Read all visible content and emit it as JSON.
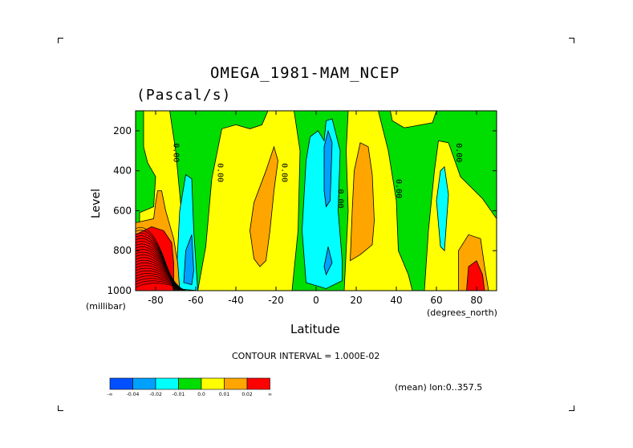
{
  "chart_data": {
    "type": "heatmap",
    "title": "OMEGA_1981-MAM_NCEP",
    "subtitle": "(Pascal/s)",
    "xlabel": "Latitude",
    "ylabel": "Level",
    "x_unit": "(degrees_north)",
    "y_unit": "(millibar)",
    "xlim": [
      -90,
      90
    ],
    "ylim": [
      1000,
      100
    ],
    "x_ticks": [
      -80,
      -60,
      -40,
      -20,
      0,
      20,
      40,
      60,
      80
    ],
    "y_ticks": [
      200,
      400,
      600,
      800,
      1000
    ],
    "contour_interval_text": "CONTOUR INTERVAL = 1.000E-02",
    "mean_text": "(mean) lon:0..357.5",
    "contour_labels": [
      {
        "text": "0.00",
        "x": -71,
        "y": 310
      },
      {
        "text": "0.00",
        "x": -49,
        "y": 410
      },
      {
        "text": "0.00",
        "x": -17,
        "y": 410
      },
      {
        "text": "0.00",
        "x": 11,
        "y": 540
      },
      {
        "text": "0.00",
        "x": 40,
        "y": 490
      },
      {
        "text": "0.00",
        "x": 70,
        "y": 310
      }
    ],
    "legend": {
      "colors": [
        "#0050ff",
        "#00a0ff",
        "#00ffff",
        "#00dd00",
        "#ffff00",
        "#ffa500",
        "#ff0000"
      ],
      "labels": [
        "-∞",
        "-0.04",
        "-0.02",
        "-0.01",
        "0.0",
        "0.01",
        "0.02",
        "∞"
      ]
    },
    "regions": [
      {
        "color": "#00dd00",
        "points": [
          [
            -90,
            100
          ],
          [
            90,
            100
          ],
          [
            90,
            1000
          ],
          [
            -90,
            1000
          ]
        ]
      },
      {
        "color": "#ffff00",
        "points": [
          [
            -88,
            610
          ],
          [
            -81,
            580
          ],
          [
            -80,
            430
          ],
          [
            -84,
            360
          ],
          [
            -86,
            280
          ],
          [
            -86,
            100
          ],
          [
            -73,
            100
          ],
          [
            -70,
            300
          ],
          [
            -67,
            620
          ],
          [
            -65,
            800
          ],
          [
            -66,
            1000
          ],
          [
            -88,
            1000
          ]
        ]
      },
      {
        "color": "#ffff00",
        "points": [
          [
            -59,
            1000
          ],
          [
            -55,
            780
          ],
          [
            -52,
            440
          ],
          [
            -47,
            190
          ],
          [
            -40,
            170
          ],
          [
            -33,
            190
          ],
          [
            -27,
            170
          ],
          [
            -24,
            100
          ],
          [
            -11,
            100
          ],
          [
            -8,
            300
          ],
          [
            -9,
            700
          ],
          [
            -11,
            900
          ],
          [
            -12,
            1000
          ]
        ]
      },
      {
        "color": "#ffff00",
        "points": [
          [
            14,
            1000
          ],
          [
            16,
            600
          ],
          [
            15,
            300
          ],
          [
            16,
            100
          ],
          [
            31,
            100
          ],
          [
            36,
            300
          ],
          [
            40,
            550
          ],
          [
            41,
            800
          ],
          [
            46,
            920
          ],
          [
            48,
            1000
          ]
        ]
      },
      {
        "color": "#ffff00",
        "points": [
          [
            54,
            1000
          ],
          [
            56,
            700
          ],
          [
            59,
            400
          ],
          [
            61,
            250
          ],
          [
            66,
            260
          ],
          [
            72,
            430
          ],
          [
            83,
            540
          ],
          [
            90,
            640
          ],
          [
            90,
            1000
          ]
        ]
      },
      {
        "color": "#ffff00",
        "points": [
          [
            37,
            100
          ],
          [
            60,
            100
          ],
          [
            58,
            160
          ],
          [
            44,
            185
          ],
          [
            38,
            150
          ]
        ]
      },
      {
        "color": "#00ffff",
        "points": [
          [
            -70,
            990
          ],
          [
            -68,
            600
          ],
          [
            -65,
            420
          ],
          [
            -62,
            440
          ],
          [
            -61,
            700
          ],
          [
            -59,
            1000
          ]
        ]
      },
      {
        "color": "#00ffff",
        "points": [
          [
            -5,
            960
          ],
          [
            -7,
            700
          ],
          [
            -5,
            350
          ],
          [
            -3,
            230
          ],
          [
            1,
            200
          ],
          [
            4,
            250
          ],
          [
            5,
            150
          ],
          [
            8,
            140
          ],
          [
            12,
            300
          ],
          [
            11,
            600
          ],
          [
            13,
            850
          ],
          [
            13,
            950
          ],
          [
            5,
            990
          ]
        ]
      },
      {
        "color": "#00ffff",
        "points": [
          [
            62,
            780
          ],
          [
            60,
            550
          ],
          [
            62,
            400
          ],
          [
            64,
            380
          ],
          [
            66,
            520
          ],
          [
            64,
            800
          ]
        ]
      },
      {
        "color": "#00a0ff",
        "points": [
          [
            -66,
            960
          ],
          [
            -65,
            800
          ],
          [
            -62,
            720
          ],
          [
            -61,
            900
          ],
          [
            -62,
            970
          ]
        ]
      },
      {
        "color": "#00a0ff",
        "points": [
          [
            4,
            280
          ],
          [
            6,
            200
          ],
          [
            8,
            260
          ],
          [
            7,
            550
          ],
          [
            5,
            580
          ],
          [
            4,
            500
          ]
        ]
      },
      {
        "color": "#00a0ff",
        "points": [
          [
            4,
            880
          ],
          [
            6,
            780
          ],
          [
            8,
            860
          ],
          [
            5,
            920
          ]
        ]
      },
      {
        "color": "#ffa500",
        "points": [
          [
            -31,
            840
          ],
          [
            -33,
            700
          ],
          [
            -31,
            560
          ],
          [
            -25,
            400
          ],
          [
            -21,
            280
          ],
          [
            -19,
            350
          ],
          [
            -21,
            500
          ],
          [
            -23,
            700
          ],
          [
            -25,
            850
          ],
          [
            -28,
            880
          ]
        ]
      },
      {
        "color": "#ffa500",
        "points": [
          [
            17,
            850
          ],
          [
            18,
            600
          ],
          [
            19,
            400
          ],
          [
            22,
            260
          ],
          [
            26,
            280
          ],
          [
            28,
            420
          ],
          [
            29,
            650
          ],
          [
            28,
            770
          ],
          [
            22,
            820
          ]
        ]
      },
      {
        "color": "#ffa500",
        "points": [
          [
            -90,
            660
          ],
          [
            -81,
            640
          ],
          [
            -80,
            560
          ],
          [
            -79,
            500
          ],
          [
            -77,
            500
          ],
          [
            -75,
            600
          ],
          [
            -71,
            740
          ],
          [
            -69,
            860
          ],
          [
            -68,
            1000
          ],
          [
            -90,
            1000
          ]
        ]
      },
      {
        "color": "#ffa500",
        "points": [
          [
            71,
            1000
          ],
          [
            71,
            800
          ],
          [
            76,
            720
          ],
          [
            82,
            740
          ],
          [
            84,
            880
          ],
          [
            86,
            1000
          ]
        ]
      },
      {
        "color": "#ff0000",
        "points": [
          [
            -90,
            720
          ],
          [
            -82,
            680
          ],
          [
            -76,
            700
          ],
          [
            -72,
            760
          ],
          [
            -71,
            860
          ],
          [
            -71,
            1000
          ],
          [
            -90,
            1000
          ]
        ]
      },
      {
        "color": "#ff0000",
        "points": [
          [
            75,
            1000
          ],
          [
            76,
            880
          ],
          [
            80,
            850
          ],
          [
            83,
            920
          ],
          [
            84,
            1000
          ]
        ]
      }
    ]
  }
}
